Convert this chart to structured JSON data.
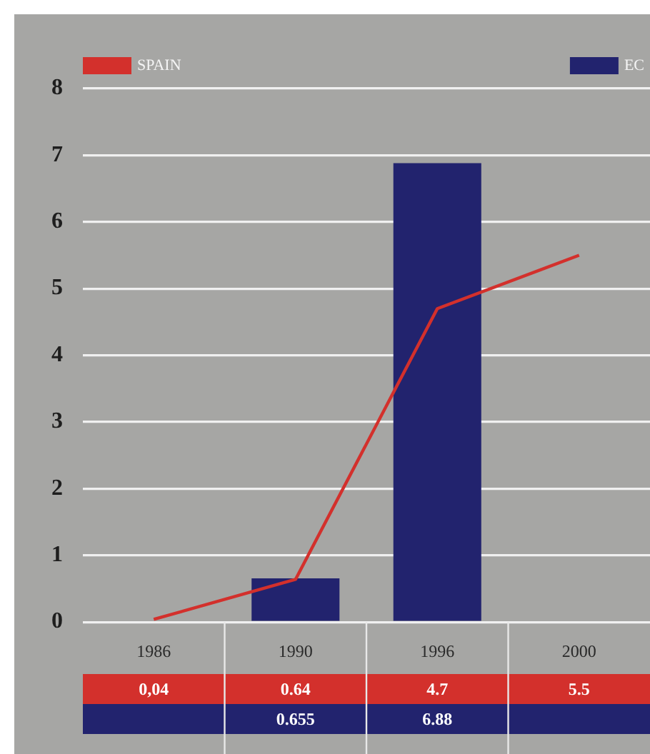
{
  "chart_data": {
    "type": "bar",
    "categories": [
      "1986",
      "1990",
      "1996",
      "2000"
    ],
    "series": [
      {
        "name": "SPAIN",
        "type": "line",
        "color": "#d3302c",
        "values": [
          0.04,
          0.64,
          4.7,
          5.5
        ],
        "value_labels": [
          "0,04",
          "0.64",
          "4.7",
          "5.5"
        ]
      },
      {
        "name": "EC",
        "color": "#22236e",
        "values": [
          null,
          0.655,
          6.88,
          null
        ],
        "value_labels": [
          null,
          "0.655",
          "6.88",
          null
        ]
      }
    ],
    "ylim": [
      0,
      8
    ],
    "yticks": [
      0,
      1,
      2,
      3,
      4,
      5,
      6,
      7,
      8
    ],
    "grid": "y",
    "legend": "top",
    "marker": "none"
  }
}
